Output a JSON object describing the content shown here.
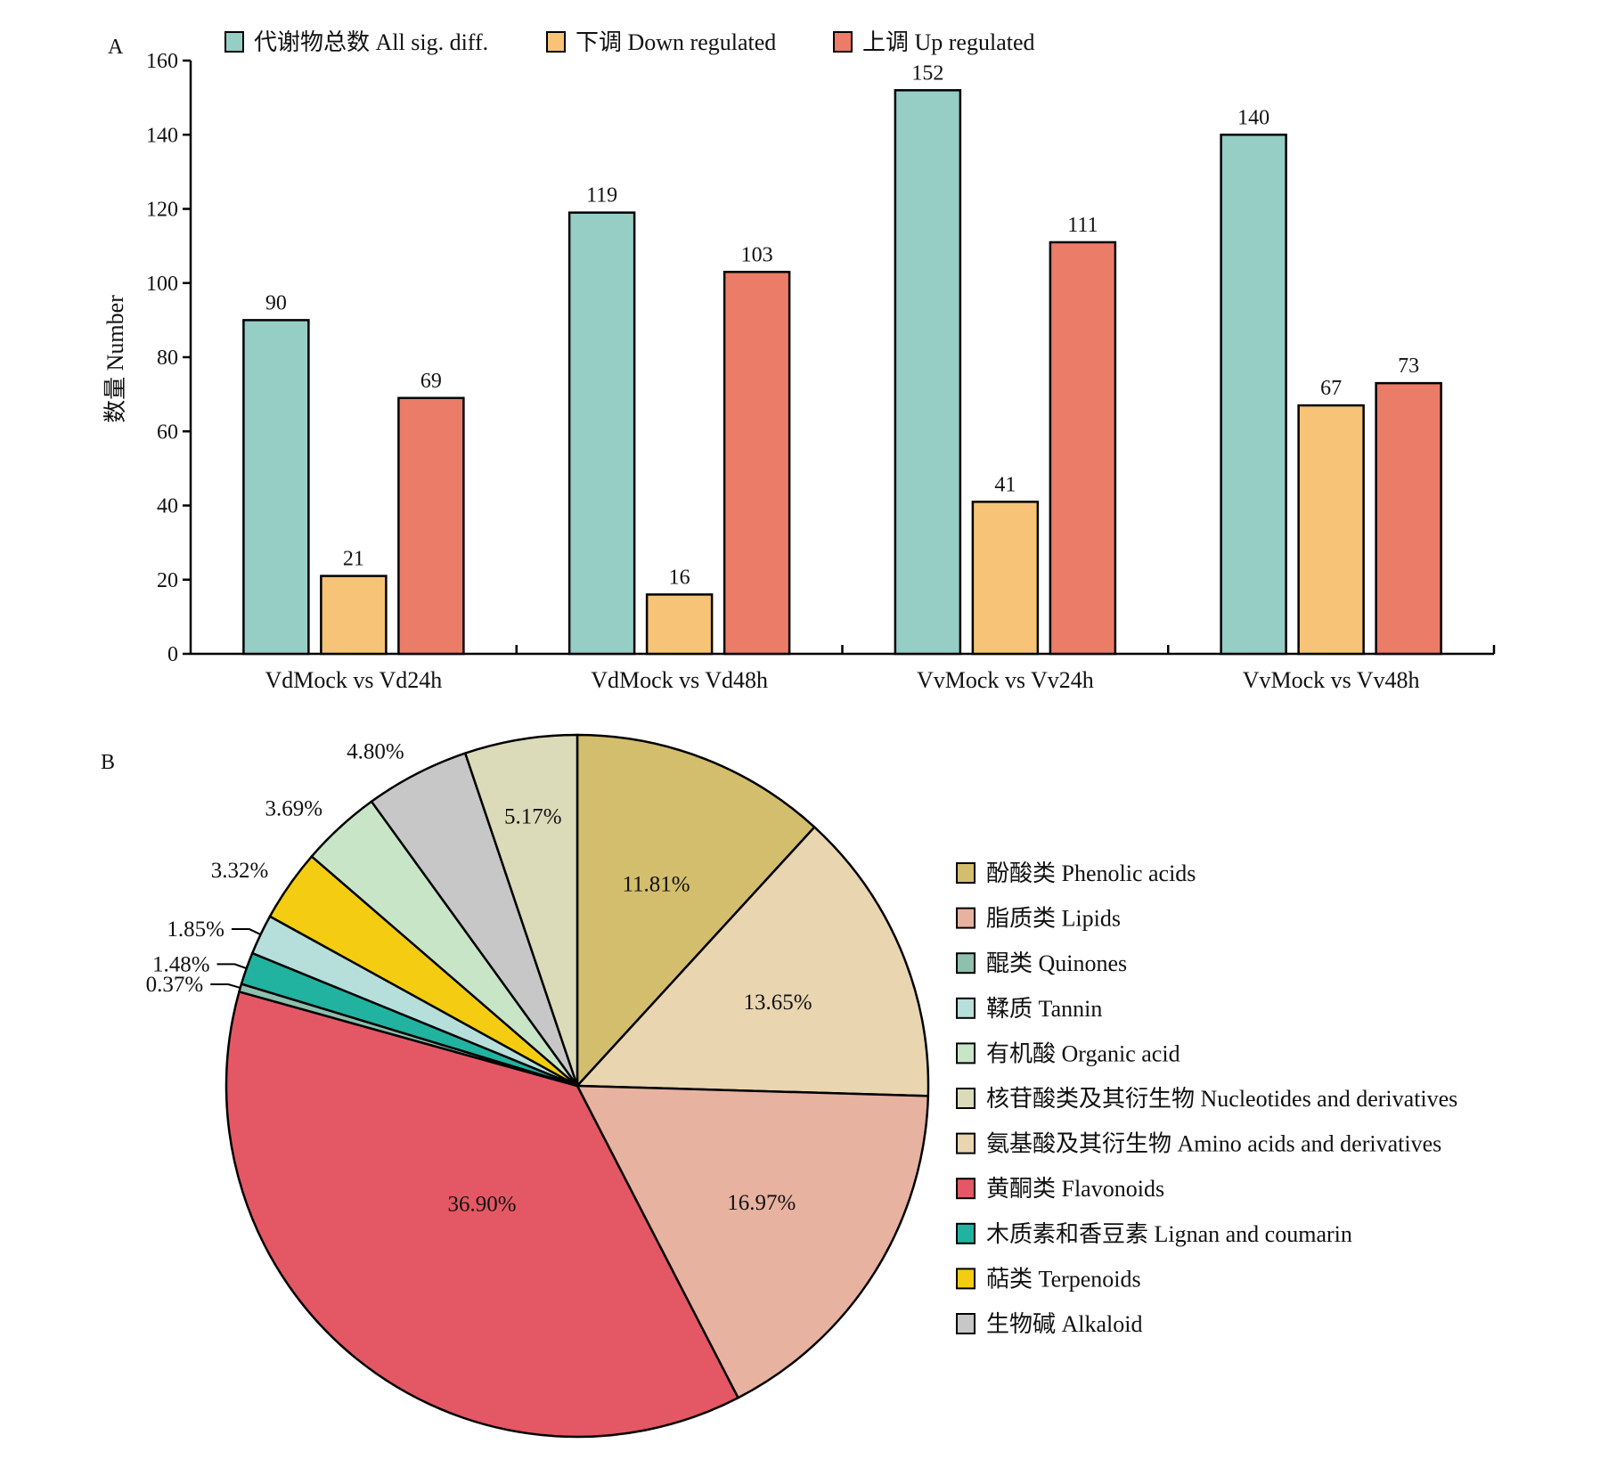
{
  "chart_data": [
    {
      "type": "bar",
      "panel_label": "A",
      "categories": [
        "VdMock vs Vd24h",
        "VdMock vs Vd48h",
        "VvMock vs Vv24h",
        "VvMock vs Vv48h"
      ],
      "series": [
        {
          "name": "代谢物总数 All sig. diff.",
          "color": "#96cdc5",
          "values": [
            90,
            119,
            152,
            140
          ]
        },
        {
          "name": "下调 Down regulated",
          "color": "#f6c377",
          "values": [
            21,
            16,
            41,
            67
          ]
        },
        {
          "name": "上调 Up regulated",
          "color": "#eb7c68",
          "values": [
            69,
            103,
            111,
            73
          ]
        }
      ],
      "ylabel": "数量 Number",
      "xlabel": "",
      "ylim": [
        0,
        160
      ],
      "yticks": [
        0,
        20,
        40,
        60,
        80,
        100,
        120,
        140,
        160
      ],
      "legend_position": "top",
      "data_labels": true,
      "grid": false
    },
    {
      "type": "pie",
      "panel_label": "B",
      "slices": [
        {
          "name": "酚酸类 Phenolic acids",
          "value": 11.81,
          "label": "11.81%",
          "color": "#d3be6d"
        },
        {
          "name": "氨基酸及其衍生物 Amino acids and derivatives",
          "value": 13.65,
          "label": "13.65%",
          "color": "#e9d6b1"
        },
        {
          "name": "脂质类 Lipids",
          "value": 16.97,
          "label": "16.97%",
          "color": "#e8b2a0"
        },
        {
          "name": "黄酮类 Flavonoids",
          "value": 36.9,
          "label": "36.90%",
          "color": "#e35864"
        },
        {
          "name": "醌类 Quinones",
          "value": 0.37,
          "label": "0.37%",
          "color": "#8fbfad"
        },
        {
          "name": "木质素和香豆素 Lignan and coumarin",
          "value": 1.48,
          "label": "1.48%",
          "color": "#22b3a0"
        },
        {
          "name": "鞣质 Tannin",
          "value": 1.85,
          "label": "1.85%",
          "color": "#b6dfdb"
        },
        {
          "name": "萜类 Terpenoids",
          "value": 3.32,
          "label": "3.32%",
          "color": "#f4cd12"
        },
        {
          "name": "有机酸 Organic acid",
          "value": 3.69,
          "label": "3.69%",
          "color": "#c8e6c7"
        },
        {
          "name": "生物碱 Alkaloid",
          "value": 4.8,
          "label": "4.80%",
          "color": "#c7c7c7"
        },
        {
          "name": "核苷酸类及其衍生物 Nucleotides and derivatives",
          "value": 5.17,
          "label": "5.17%",
          "color": "#dcdbb9"
        }
      ],
      "legend": [
        {
          "name": "酚酸类 Phenolic acids",
          "color": "#d3be6d"
        },
        {
          "name": "脂质类 Lipids",
          "color": "#e8b2a0"
        },
        {
          "name": "醌类 Quinones",
          "color": "#8fbfad"
        },
        {
          "name": "鞣质 Tannin",
          "color": "#b6dfdb"
        },
        {
          "name": "有机酸 Organic acid",
          "color": "#c8e6c7"
        },
        {
          "name": "核苷酸类及其衍生物 Nucleotides and derivatives",
          "color": "#dcdbb9"
        },
        {
          "name": "氨基酸及其衍生物 Amino acids and derivatives",
          "color": "#e9d6b1"
        },
        {
          "name": "黄酮类 Flavonoids",
          "color": "#e35864"
        },
        {
          "name": "木质素和香豆素 Lignan and coumarin",
          "color": "#22b3a0"
        },
        {
          "name": "萜类 Terpenoids",
          "color": "#f4cd12"
        },
        {
          "name": "生物碱 Alkaloid",
          "color": "#c7c7c7"
        }
      ],
      "legend_position": "right",
      "start_angle": "12 o'clock",
      "direction": "clockwise"
    }
  ]
}
